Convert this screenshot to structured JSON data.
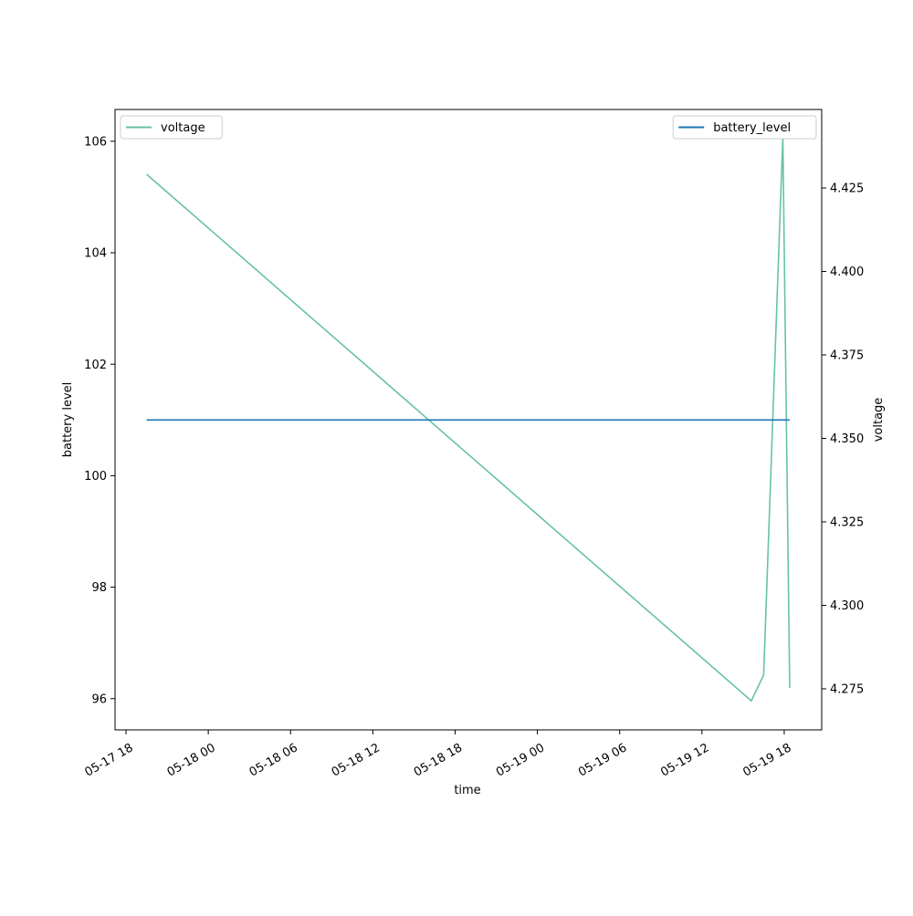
{
  "chart_data": {
    "type": "line",
    "x_label": "time",
    "y_label": "battery level",
    "y2_label": "voltage",
    "x": [
      "05-17 19:30",
      "05-19 15:36",
      "05-19 16:30",
      "05-19 17:54",
      "05-19 18:24"
    ],
    "series": [
      {
        "name": "voltage",
        "color": "#66c2a5",
        "axis": "y2",
        "values": [
          4.4291,
          4.2714,
          4.2791,
          4.4403,
          4.2753
        ]
      },
      {
        "name": "battery_level",
        "color": "#1f77b4",
        "values": [
          101,
          101,
          101,
          101,
          101
        ]
      }
    ],
    "xlim": [
      "05-17 17:12",
      "05-19 20:44"
    ],
    "xticks": [
      "05-17 18",
      "05-18 00",
      "05-18 06",
      "05-18 12",
      "05-18 18",
      "05-19 00",
      "05-19 06",
      "05-19 12",
      "05-19 18"
    ],
    "ylim": [
      95.44,
      106.57
    ],
    "yticks": [
      96,
      98,
      100,
      102,
      104,
      106
    ],
    "y2lim": [
      4.2627,
      4.4485
    ],
    "y2ticks": [
      {
        "value": 4.275,
        "label": "4.275"
      },
      {
        "value": 4.3,
        "label": "4.300"
      },
      {
        "value": 4.325,
        "label": "4.325"
      },
      {
        "value": 4.35,
        "label": "4.350"
      },
      {
        "value": 4.375,
        "label": "4.375"
      },
      {
        "value": 4.4,
        "label": "4.400"
      },
      {
        "value": 4.425,
        "label": "4.425"
      }
    ],
    "legend": {
      "voltage": "upper left",
      "battery_level": "upper right"
    }
  }
}
